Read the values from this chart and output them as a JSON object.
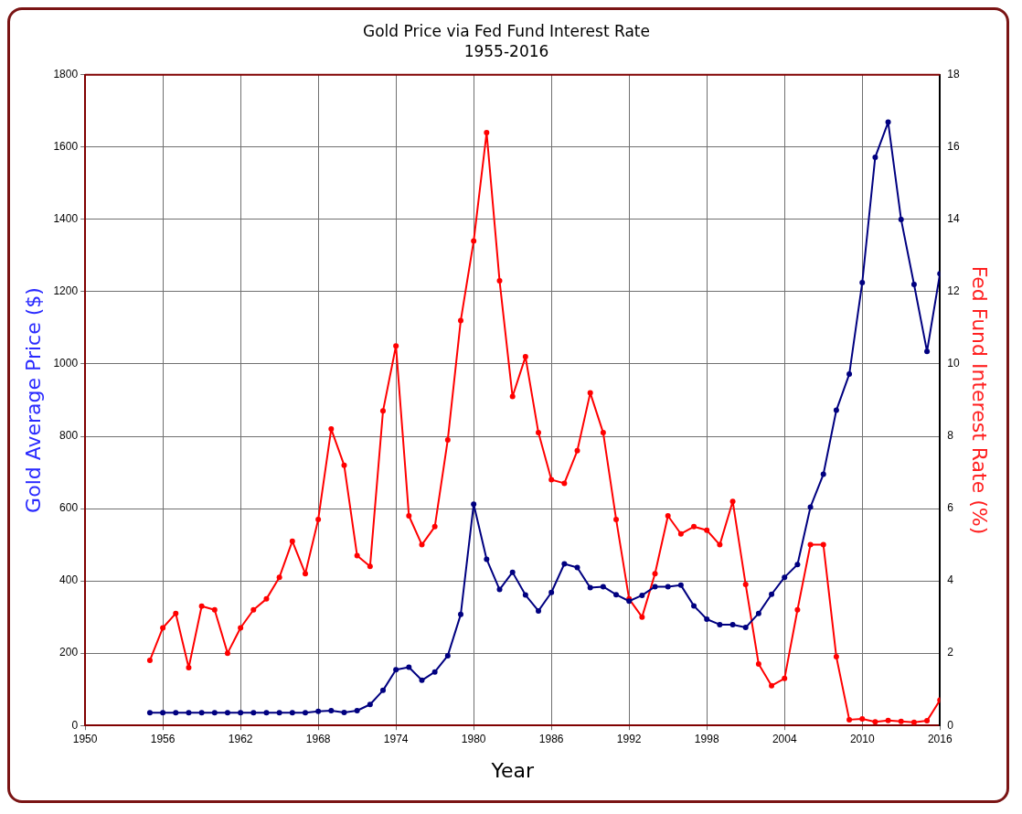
{
  "chart_data": {
    "type": "line",
    "title": "Gold Price via Fed Fund Interest Rate",
    "subtitle": "1955-2016",
    "xlabel": "Year",
    "ylabel": "Gold Average Price ($)",
    "y2label": "Fed Fund Interest Rate (%)",
    "x": [
      1955,
      1956,
      1957,
      1958,
      1959,
      1960,
      1961,
      1962,
      1963,
      1964,
      1965,
      1966,
      1967,
      1968,
      1969,
      1970,
      1971,
      1972,
      1973,
      1974,
      1975,
      1976,
      1977,
      1978,
      1979,
      1980,
      1981,
      1982,
      1983,
      1984,
      1985,
      1986,
      1987,
      1988,
      1989,
      1990,
      1991,
      1992,
      1993,
      1994,
      1995,
      1996,
      1997,
      1998,
      1999,
      2000,
      2001,
      2002,
      2003,
      2004,
      2005,
      2006,
      2007,
      2008,
      2009,
      2010,
      2011,
      2012,
      2013,
      2014,
      2015,
      2016
    ],
    "series": [
      {
        "color": "#000080",
        "values": [
          35,
          35,
          35,
          35,
          35,
          35,
          35,
          35,
          35,
          35,
          35,
          35,
          35,
          39,
          41,
          36,
          41,
          58,
          97,
          154,
          161,
          125,
          148,
          193,
          307,
          612,
          460,
          376,
          424,
          361,
          317,
          368,
          447,
          437,
          381,
          384,
          362,
          344,
          360,
          384,
          384,
          388,
          331,
          294,
          279,
          279,
          271,
          310,
          363,
          410,
          445,
          604,
          695,
          872,
          972,
          1225,
          1572,
          1669,
          1400,
          1220,
          1035,
          1250
        ]
      },
      {
        "color": "#ff0000",
        "axis": "y2",
        "values": [
          1.8,
          2.7,
          3.1,
          1.6,
          3.3,
          3.2,
          2.0,
          2.7,
          3.2,
          3.5,
          4.1,
          5.1,
          4.2,
          5.7,
          8.2,
          7.2,
          4.7,
          4.4,
          8.7,
          10.5,
          5.8,
          5.0,
          5.5,
          7.9,
          11.2,
          13.4,
          16.4,
          12.3,
          9.1,
          10.2,
          8.1,
          6.8,
          6.7,
          7.6,
          9.2,
          8.1,
          5.7,
          3.5,
          3.0,
          4.2,
          5.8,
          5.3,
          5.5,
          5.4,
          5.0,
          6.2,
          3.9,
          1.7,
          1.1,
          1.3,
          3.2,
          5.0,
          5.0,
          1.9,
          0.16,
          0.18,
          0.1,
          0.14,
          0.11,
          0.09,
          0.13,
          0.7
        ]
      }
    ],
    "xlim": [
      1950,
      2016
    ],
    "xticks": [
      1950,
      1956,
      1962,
      1968,
      1974,
      1980,
      1986,
      1992,
      1998,
      2004,
      2010,
      2016
    ],
    "ylim": [
      0,
      1800
    ],
    "yticks": [
      0,
      200,
      400,
      600,
      800,
      1000,
      1200,
      1400,
      1600,
      1800
    ],
    "y2lim": [
      0,
      18
    ],
    "y2ticks": [
      0,
      2,
      4,
      6,
      8,
      10,
      12,
      14,
      16,
      18
    ],
    "grid": true,
    "legend": false,
    "marker": "circle",
    "line_style": "solid"
  }
}
